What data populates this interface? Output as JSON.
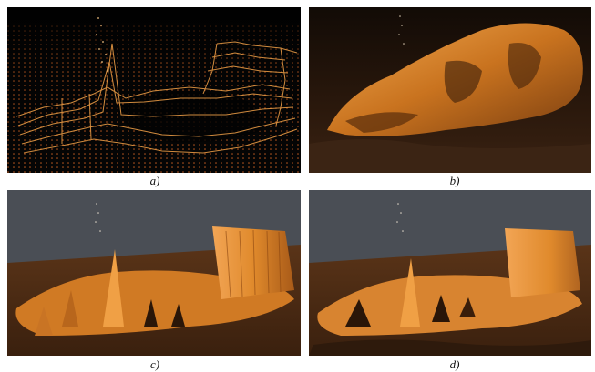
{
  "panels": [
    {
      "id": "a",
      "caption": "a)"
    },
    {
      "id": "b",
      "caption": "b)"
    },
    {
      "id": "c",
      "caption": "c)"
    },
    {
      "id": "d",
      "caption": "d)"
    }
  ],
  "colors": {
    "background_dark": "#050505",
    "sky_gray": "#4a4e55",
    "surface_orange": "#e08a2c",
    "surface_dark": "#4a2a10",
    "point_orange": "#f0a040"
  }
}
